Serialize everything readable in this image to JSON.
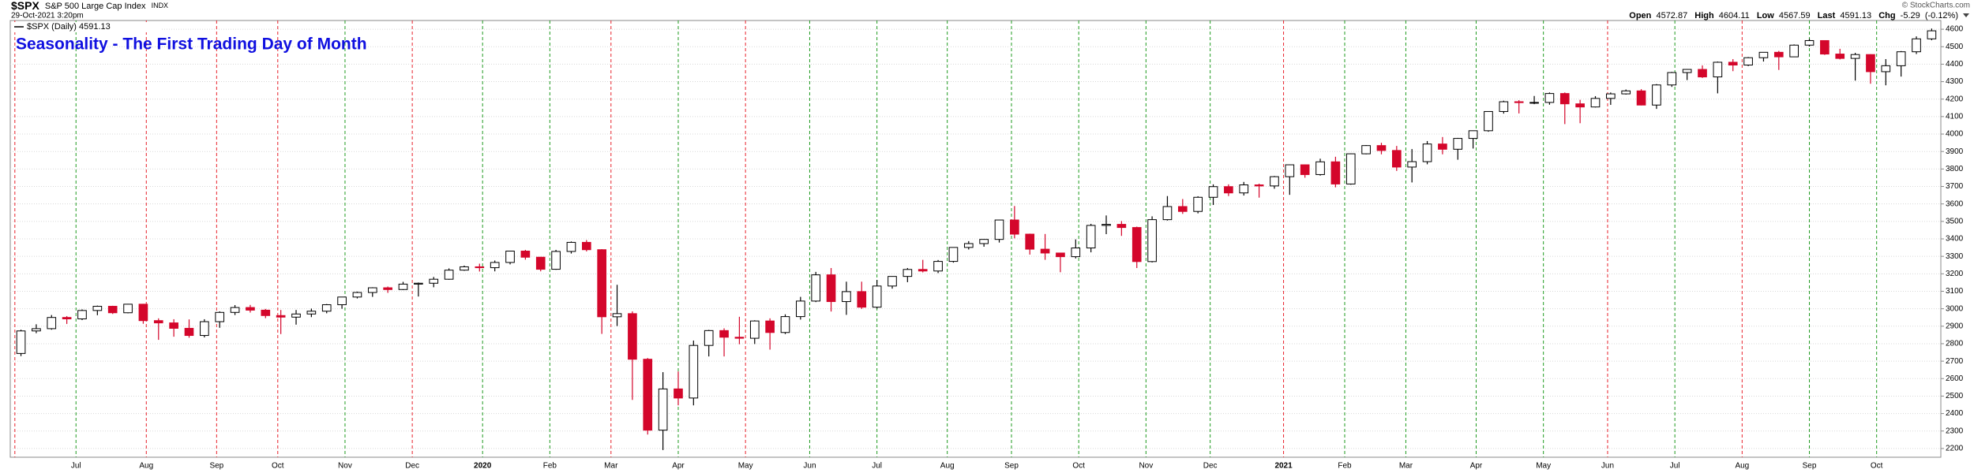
{
  "header": {
    "symbol": "$SPX",
    "name": "S&P 500 Large Cap Index",
    "exchange": "INDX",
    "timestamp": "29-Oct-2021 3:20pm",
    "copyright": "© StockCharts.com",
    "quote": {
      "open_label": "Open",
      "open": 4572.87,
      "high_label": "High",
      "high": 4604.11,
      "low_label": "Low",
      "low": 4567.59,
      "last_label": "Last",
      "last": 4591.13,
      "chg_label": "Chg",
      "chg": -5.29,
      "chg_pct": "(-0.12%)"
    }
  },
  "chart_data": {
    "type": "candlestick",
    "title": "Seasonality - The First Trading Day of Month",
    "legend": "$SPX (Daily) 4591.13",
    "up_color": "#000000",
    "down_color": "#d4062b",
    "grid": true,
    "ylim": [
      2150,
      4650
    ],
    "yticks": [
      2200,
      2300,
      2400,
      2500,
      2600,
      2700,
      2800,
      2900,
      3000,
      3100,
      3200,
      3300,
      3400,
      3500,
      3600,
      3700,
      3800,
      3900,
      4000,
      4100,
      4200,
      4300,
      4400,
      4500,
      4600
    ],
    "xlim": [
      -0.7,
      125.6
    ],
    "month_starts": [
      {
        "value": -0.4,
        "label": null,
        "color": "#e8202a"
      },
      {
        "value": 3.6,
        "label": "Jul",
        "color": "#1f9a1f"
      },
      {
        "value": 8.2,
        "label": "Aug",
        "color": "#e8202a"
      },
      {
        "value": 12.8,
        "label": "Sep",
        "color": "#e8202a"
      },
      {
        "value": 16.8,
        "label": "Oct",
        "color": "#e8202a"
      },
      {
        "value": 21.2,
        "label": "Nov",
        "color": "#1f9a1f"
      },
      {
        "value": 25.6,
        "label": "Dec",
        "color": "#e8202a"
      },
      {
        "value": 30.2,
        "label": "2020",
        "color": "#1f9a1f"
      },
      {
        "value": 34.6,
        "label": "Feb",
        "color": "#1f9a1f"
      },
      {
        "value": 38.6,
        "label": "Mar",
        "color": "#e8202a"
      },
      {
        "value": 43.0,
        "label": "Apr",
        "color": "#1f9a1f"
      },
      {
        "value": 47.4,
        "label": "May",
        "color": "#e8202a"
      },
      {
        "value": 51.6,
        "label": "Jun",
        "color": "#1f9a1f"
      },
      {
        "value": 56.0,
        "label": "Jul",
        "color": "#1f9a1f"
      },
      {
        "value": 60.6,
        "label": "Aug",
        "color": "#1f9a1f"
      },
      {
        "value": 64.8,
        "label": "Sep",
        "color": "#1f9a1f"
      },
      {
        "value": 69.2,
        "label": "Oct",
        "color": "#1f9a1f"
      },
      {
        "value": 73.6,
        "label": "Nov",
        "color": "#1f9a1f"
      },
      {
        "value": 77.8,
        "label": "Dec",
        "color": "#1f9a1f"
      },
      {
        "value": 82.6,
        "label": "2021",
        "color": "#e8202a"
      },
      {
        "value": 86.6,
        "label": "Feb",
        "color": "#1f9a1f"
      },
      {
        "value": 90.6,
        "label": "Mar",
        "color": "#1f9a1f"
      },
      {
        "value": 95.2,
        "label": "Apr",
        "color": "#1f9a1f"
      },
      {
        "value": 99.6,
        "label": "May",
        "color": "#1f9a1f"
      },
      {
        "value": 103.8,
        "label": "Jun",
        "color": "#e8202a"
      },
      {
        "value": 108.2,
        "label": "Jul",
        "color": "#1f9a1f"
      },
      {
        "value": 112.6,
        "label": "Aug",
        "color": "#e8202a"
      },
      {
        "value": 117.0,
        "label": "Sep",
        "color": "#1f9a1f"
      },
      {
        "value": 121.4,
        "label": "Oct",
        "color": "#1f9a1f"
      }
    ],
    "open": [
      2744,
      2873,
      2886,
      2950,
      2942,
      2990,
      3014,
      2977,
      3026,
      2932,
      2919,
      2888,
      2847,
      2926,
      2979,
      3007,
      2992,
      2961,
      2952,
      2970,
      2986,
      3023,
      3067,
      3093,
      3120,
      3110,
      3141,
      3146,
      3169,
      3221,
      3240,
      3235,
      3265,
      3330,
      3295,
      3226,
      3328,
      3380,
      3338,
      2954,
      2972,
      2711,
      2305,
      2541,
      2489,
      2790,
      2875,
      2837,
      2831,
      2930,
      2864,
      2955,
      3044,
      3194,
      3041,
      3098,
      3009,
      3130,
      3185,
      3225,
      3216,
      3271,
      3351,
      3373,
      3397,
      3508,
      3427,
      3341,
      3319,
      3298,
      3348,
      3477,
      3483,
      3465,
      3270,
      3510,
      3585,
      3557,
      3638,
      3699,
      3663,
      3709,
      3703,
      3756,
      3824,
      3768,
      3841,
      3714,
      3887,
      3934,
      3906,
      3811,
      3842,
      3943,
      3913,
      3975,
      4019,
      4129,
      4185,
      4180,
      4181,
      4232,
      4173,
      4155,
      4204,
      4230,
      4247,
      4166,
      4281,
      4352,
      4370,
      4327,
      4411,
      4395,
      4437,
      4468,
      4442,
      4509,
      4535,
      4458,
      4433,
      4455,
      4357,
      4391,
      4471,
      4545
    ],
    "high": [
      2880,
      2911,
      2964,
      2958,
      2996,
      3018,
      3017,
      3028,
      3028,
      2945,
      2940,
      2939,
      2940,
      2985,
      3021,
      3022,
      2999,
      2993,
      2993,
      3001,
      3027,
      3067,
      3098,
      3123,
      3127,
      3154,
      3150,
      3182,
      3231,
      3247,
      3258,
      3276,
      3330,
      3337,
      3297,
      3337,
      3385,
      3393,
      3341,
      3137,
      2985,
      2718,
      2637,
      2641,
      2818,
      2879,
      2888,
      2954,
      2934,
      2945,
      2968,
      3068,
      3211,
      3233,
      3155,
      3155,
      3165,
      3186,
      3233,
      3280,
      3279,
      3352,
      3387,
      3399,
      3509,
      3588,
      3430,
      3428,
      3320,
      3397,
      3486,
      3534,
      3502,
      3470,
      3529,
      3645,
      3628,
      3644,
      3712,
      3712,
      3726,
      3716,
      3760,
      3826,
      3826,
      3859,
      3870,
      3889,
      3937,
      3950,
      3932,
      3914,
      3960,
      3983,
      3978,
      4020,
      4130,
      4191,
      4194,
      4218,
      4238,
      4238,
      4196,
      4217,
      4238,
      4255,
      4257,
      4286,
      4356,
      4372,
      4393,
      4415,
      4429,
      4441,
      4468,
      4476,
      4513,
      4545,
      4537,
      4488,
      4465,
      4457,
      4429,
      4475,
      4559,
      4604
    ],
    "low": [
      2729,
      2860,
      2880,
      2913,
      2935,
      2963,
      2970,
      2974,
      2914,
      2822,
      2840,
      2834,
      2836,
      2891,
      2964,
      2978,
      2946,
      2855,
      2909,
      2952,
      2974,
      3000,
      3059,
      3068,
      3091,
      3107,
      3070,
      3123,
      3166,
      3217,
      3213,
      3214,
      3254,
      3281,
      3214,
      3223,
      3316,
      3328,
      2856,
      2901,
      2478,
      2280,
      2191,
      2447,
      2447,
      2727,
      2727,
      2797,
      2798,
      2766,
      2855,
      2938,
      3038,
      2984,
      2965,
      2999,
      3001,
      3115,
      3152,
      3208,
      3204,
      3264,
      3339,
      3355,
      3379,
      3403,
      3310,
      3280,
      3209,
      3288,
      3323,
      3427,
      3417,
      3233,
      3265,
      3505,
      3543,
      3546,
      3594,
      3645,
      3648,
      3636,
      3687,
      3652,
      3750,
      3762,
      3695,
      3710,
      3884,
      3884,
      3789,
      3723,
      3827,
      3884,
      3853,
      3917,
      4013,
      4117,
      4118,
      4171,
      4168,
      4057,
      4062,
      4152,
      4167,
      4226,
      4164,
      4144,
      4270,
      4309,
      4321,
      4233,
      4360,
      4389,
      4415,
      4367,
      4441,
      4501,
      4453,
      4427,
      4306,
      4288,
      4279,
      4329,
      4458,
      4537
    ],
    "close": [
      2873,
      2886,
      2950,
      2942,
      2990,
      3014,
      2977,
      3026,
      2932,
      2919,
      2888,
      2847,
      2926,
      2979,
      3007,
      2992,
      2961,
      2952,
      2970,
      2986,
      3023,
      3067,
      3093,
      3120,
      3110,
      3141,
      3146,
      3169,
      3221,
      3240,
      3235,
      3265,
      3330,
      3295,
      3226,
      3328,
      3380,
      3338,
      2954,
      2972,
      2711,
      2305,
      2541,
      2489,
      2790,
      2875,
      2837,
      2831,
      2930,
      2864,
      2955,
      3044,
      3194,
      3041,
      3098,
      3009,
      3130,
      3185,
      3225,
      3216,
      3271,
      3351,
      3373,
      3397,
      3508,
      3427,
      3341,
      3319,
      3298,
      3348,
      3477,
      3483,
      3465,
      3270,
      3510,
      3585,
      3557,
      3638,
      3699,
      3663,
      3709,
      3703,
      3756,
      3824,
      3768,
      3841,
      3714,
      3887,
      3934,
      3906,
      3811,
      3842,
      3943,
      3913,
      3975,
      4019,
      4129,
      4185,
      4180,
      4181,
      4232,
      4173,
      4155,
      4204,
      4230,
      4247,
      4166,
      4281,
      4352,
      4370,
      4327,
      4411,
      4395,
      4437,
      4468,
      4442,
      4509,
      4535,
      4458,
      4433,
      4455,
      4357,
      4391,
      4471,
      4545,
      4591
    ]
  }
}
